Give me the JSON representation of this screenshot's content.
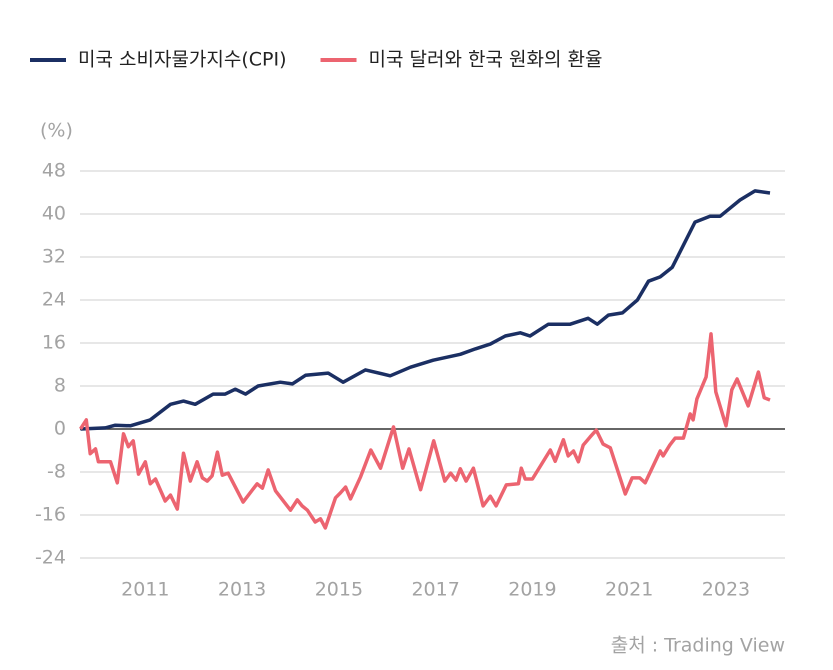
{
  "chart_data": {
    "type": "line",
    "y_unit_label": "(%)",
    "source": "출처 : Trading View",
    "xlim": [
      2009.65,
      2024.22
    ],
    "xticks": [
      2011,
      2013,
      2015,
      2017,
      2019,
      2021,
      2023
    ],
    "ylim": [
      -24,
      48
    ],
    "yticks": [
      48,
      40,
      32,
      24,
      16,
      8,
      0,
      -8,
      -16,
      -24
    ],
    "grid": true,
    "legend": "top-left",
    "series": [
      {
        "name": "미국 소비자물가지수(CPI)",
        "color": "#1b2f63",
        "x": [
          2009.66,
          2010.17,
          2010.38,
          2010.69,
          2011.1,
          2011.52,
          2011.79,
          2012.03,
          2012.4,
          2012.65,
          2012.86,
          2013.07,
          2013.33,
          2013.79,
          2014.04,
          2014.31,
          2014.78,
          2015.09,
          2015.55,
          2016.06,
          2016.48,
          2016.95,
          2017.51,
          2017.82,
          2018.13,
          2018.44,
          2018.75,
          2018.95,
          2019.33,
          2019.78,
          2020.15,
          2020.34,
          2020.57,
          2020.86,
          2021.17,
          2021.4,
          2021.64,
          2021.89,
          2022.12,
          2022.36,
          2022.67,
          2022.88,
          2023.29,
          2023.6,
          2023.91
        ],
        "values": [
          0,
          0.2,
          0.7,
          0.6,
          1.7,
          4.6,
          5.2,
          4.6,
          6.5,
          6.5,
          7.4,
          6.5,
          8.0,
          8.7,
          8.4,
          10.0,
          10.4,
          8.7,
          11.0,
          9.9,
          11.5,
          12.8,
          13.9,
          14.9,
          15.8,
          17.3,
          17.9,
          17.3,
          19.5,
          19.5,
          20.6,
          19.5,
          21.2,
          21.6,
          24.0,
          27.5,
          28.3,
          30.1,
          34.2,
          38.5,
          39.6,
          39.6,
          42.6,
          44.3,
          43.9
        ]
      },
      {
        "name": "미국 달러와 한국 원화의 환율",
        "color": "#ec6470",
        "x": [
          2009.66,
          2009.78,
          2009.86,
          2009.97,
          2010.03,
          2010.28,
          2010.42,
          2010.55,
          2010.65,
          2010.75,
          2010.86,
          2011.0,
          2011.1,
          2011.21,
          2011.41,
          2011.52,
          2011.66,
          2011.79,
          2011.93,
          2012.07,
          2012.18,
          2012.28,
          2012.38,
          2012.49,
          2012.59,
          2012.71,
          2013.02,
          2013.31,
          2013.42,
          2013.54,
          2013.69,
          2014.0,
          2014.14,
          2014.24,
          2014.35,
          2014.51,
          2014.62,
          2014.72,
          2014.93,
          2015.03,
          2015.14,
          2015.24,
          2015.45,
          2015.66,
          2015.86,
          2016.13,
          2016.32,
          2016.45,
          2016.69,
          2016.96,
          2017.19,
          2017.31,
          2017.42,
          2017.51,
          2017.63,
          2017.78,
          2017.98,
          2018.13,
          2018.25,
          2018.46,
          2018.71,
          2018.77,
          2018.85,
          2019.0,
          2019.37,
          2019.47,
          2019.64,
          2019.74,
          2019.85,
          2019.95,
          2020.05,
          2020.19,
          2020.32,
          2020.46,
          2020.61,
          2020.92,
          2021.06,
          2021.22,
          2021.33,
          2021.64,
          2021.7,
          2021.84,
          2021.95,
          2022.12,
          2022.26,
          2022.32,
          2022.4,
          2022.59,
          2022.69,
          2022.79,
          2023.0,
          2023.12,
          2023.23,
          2023.46,
          2023.67,
          2023.79,
          2023.91
        ],
        "values": [
          0,
          1.7,
          -4.6,
          -3.7,
          -6.1,
          -6.1,
          -10.0,
          -0.9,
          -3.3,
          -2.2,
          -8.4,
          -6.1,
          -10.2,
          -9.3,
          -13.4,
          -12.3,
          -14.9,
          -4.5,
          -9.7,
          -6.1,
          -9.1,
          -9.7,
          -8.7,
          -4.3,
          -8.6,
          -8.2,
          -13.6,
          -10.2,
          -11.0,
          -7.6,
          -11.5,
          -15.1,
          -13.2,
          -14.3,
          -15.1,
          -17.3,
          -16.7,
          -18.4,
          -12.8,
          -11.9,
          -10.8,
          -13.0,
          -8.9,
          -3.9,
          -7.3,
          0.4,
          -7.3,
          -3.7,
          -11.3,
          -2.2,
          -9.7,
          -8.2,
          -9.5,
          -7.4,
          -9.7,
          -7.3,
          -14.3,
          -12.5,
          -14.3,
          -10.4,
          -10.2,
          -7.3,
          -9.3,
          -9.3,
          -3.9,
          -6.0,
          -2.0,
          -5.0,
          -4.1,
          -6.1,
          -3.0,
          -1.5,
          -0.2,
          -2.8,
          -3.5,
          -12.1,
          -9.1,
          -9.1,
          -10.0,
          -4.1,
          -5.0,
          -3.0,
          -1.7,
          -1.7,
          2.8,
          1.7,
          5.6,
          9.7,
          17.7,
          6.9,
          0.6,
          7.3,
          9.3,
          4.3,
          10.6,
          5.8,
          5.4
        ]
      }
    ]
  }
}
